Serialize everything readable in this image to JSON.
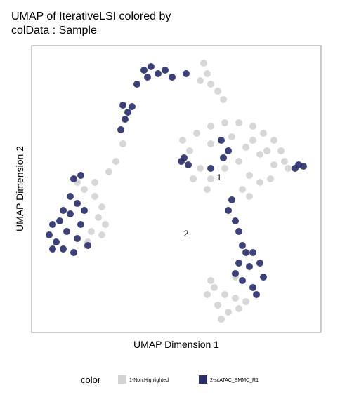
{
  "chart_data": {
    "type": "scatter",
    "title": [
      "UMAP of IterativeLSI  colored by",
      "colData : Sample"
    ],
    "xlabel": "UMAP Dimension 1",
    "ylabel": "UMAP Dimension 2",
    "xlim": [
      0,
      412
    ],
    "ylim": [
      0,
      409
    ],
    "annotations": [
      "1",
      "2"
    ],
    "legend_title": "color",
    "series": [
      {
        "name": "1-Non.Highlighted",
        "color": "#d3d3d3",
        "x": [
          75,
          90,
          100,
          95,
          105,
          85,
          100,
          80,
          65,
          90,
          245,
          250,
          240,
          255,
          265,
          273,
          120,
          130,
          110,
          215,
          235,
          255,
          275,
          295,
          315,
          330,
          345,
          355,
          360,
          345,
          325,
          305,
          295,
          310,
          325,
          340,
          300,
          255,
          240,
          225,
          255,
          285,
          315,
          335,
          365,
          310,
          250,
          230,
          275,
          255,
          250,
          265,
          280,
          295,
          275,
          260,
          290,
          305,
          270,
          290
        ],
        "y": [
          204,
          194,
          179,
          164,
          154,
          144,
          139,
          129,
          214,
          214,
          384,
          369,
          359,
          354,
          344,
          332,
          244,
          269,
          229,
          274,
          284,
          294,
          299,
          299,
          294,
          284,
          274,
          259,
          244,
          239,
          254,
          264,
          244,
          224,
          214,
          219,
          204,
          219,
          234,
          259,
          269,
          279,
          274,
          259,
          234,
          194,
          204,
          219,
          234,
          74,
          54,
          39,
          29,
          34,
          54,
          64,
          49,
          44,
          19,
          79
        ]
      },
      {
        "name": "2-scATAC_BMMC_R1",
        "color": "#272e6a",
        "x": [
          30,
          25,
          35,
          45,
          60,
          50,
          40,
          65,
          70,
          55,
          55,
          65,
          60,
          70,
          75,
          30,
          80,
          45,
          130,
          137,
          133,
          143,
          127,
          160,
          170,
          180,
          190,
          165,
          200,
          220,
          150,
          213,
          223,
          217,
          270,
          280,
          273,
          255,
          285,
          280,
          290,
          295,
          380,
          387,
          375,
          300,
          315,
          325,
          330,
          310,
          300,
          315,
          295,
          320,
          305,
          290
        ],
        "y": [
          154,
          139,
          129,
          119,
          114,
          144,
          159,
          134,
          154,
          169,
          194,
          184,
          219,
          224,
          174,
          119,
          124,
          174,
          324,
          314,
          304,
          322,
          289,
          374,
          379,
          369,
          374,
          364,
          364,
          369,
          354,
          244,
          239,
          249,
          274,
          259,
          249,
          234,
          189,
          174,
          159,
          144,
          239,
          237,
          234,
          124,
          114,
          99,
          79,
          94,
          74,
          64,
          99,
          54,
          114,
          84
        ]
      }
    ]
  }
}
